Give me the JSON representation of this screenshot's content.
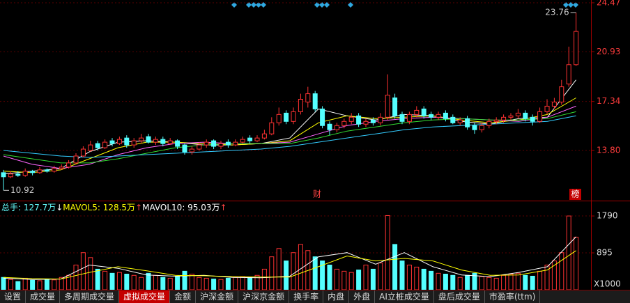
{
  "chart_data": [
    {
      "type": "candlestick",
      "open": [
        12.2,
        11.9,
        12.1,
        12.0,
        12.3,
        12.2,
        12.4,
        12.3,
        12.5,
        12.6,
        12.9,
        13.4,
        13.8,
        14.3,
        14.0,
        14.5,
        14.3,
        14.7,
        14.2,
        14.5,
        14.8,
        14.4,
        14.6,
        14.3,
        14.5,
        14.2,
        13.7,
        13.9,
        14.2,
        14.5,
        14.1,
        14.4,
        14.2,
        14.4,
        14.7,
        14.5,
        14.7,
        15.0,
        15.8,
        16.5,
        15.9,
        16.6,
        17.3,
        17.9,
        16.8,
        15.7,
        15.3,
        15.6,
        15.9,
        16.3,
        15.7,
        16.0,
        15.8,
        16.2,
        17.6,
        16.4,
        15.9,
        16.4,
        16.8,
        16.4,
        16.2,
        16.5,
        16.2,
        15.8,
        16.1,
        15.6,
        15.3,
        15.6,
        15.9,
        16.0,
        16.2,
        16.3,
        16.5,
        16.2,
        15.9,
        16.6,
        17.0,
        17.3,
        18.6,
        20.0
      ],
      "high": [
        12.4,
        12.3,
        12.3,
        12.5,
        12.4,
        12.6,
        12.5,
        12.7,
        12.8,
        13.1,
        13.6,
        14.1,
        14.5,
        14.5,
        14.6,
        14.7,
        14.8,
        14.9,
        14.7,
        15.0,
        15.0,
        14.8,
        14.8,
        14.7,
        14.6,
        14.3,
        14.1,
        14.4,
        14.6,
        14.6,
        14.5,
        14.6,
        14.6,
        14.8,
        14.9,
        14.9,
        15.3,
        16.2,
        16.9,
        16.7,
        16.9,
        17.9,
        18.4,
        18.1,
        17.0,
        15.9,
        15.8,
        16.1,
        16.5,
        16.5,
        16.1,
        16.2,
        16.5,
        19.3,
        17.9,
        16.6,
        16.6,
        17.0,
        17.0,
        16.6,
        16.6,
        16.7,
        16.4,
        16.2,
        16.3,
        15.8,
        15.8,
        16.1,
        16.2,
        16.4,
        16.5,
        16.8,
        16.7,
        16.4,
        16.9,
        17.5,
        17.6,
        18.9,
        21.3,
        23.76
      ],
      "low": [
        10.92,
        11.8,
        11.9,
        11.9,
        12.0,
        12.1,
        12.2,
        12.2,
        12.4,
        12.5,
        12.8,
        13.3,
        13.7,
        13.8,
        13.9,
        14.1,
        14.2,
        14.0,
        14.0,
        14.3,
        14.3,
        14.2,
        14.1,
        14.2,
        13.9,
        13.5,
        13.5,
        13.8,
        14.0,
        13.9,
        13.9,
        14.0,
        14.1,
        14.3,
        14.3,
        14.4,
        14.6,
        14.9,
        15.6,
        15.7,
        15.7,
        16.4,
        16.9,
        16.6,
        15.4,
        14.9,
        15.1,
        15.4,
        15.7,
        15.5,
        15.5,
        15.6,
        15.6,
        16.0,
        16.1,
        15.7,
        15.7,
        16.2,
        16.1,
        16.0,
        16.0,
        15.9,
        15.7,
        15.6,
        15.3,
        15.0,
        15.1,
        15.4,
        15.7,
        15.8,
        16.0,
        16.1,
        15.9,
        15.6,
        15.8,
        16.4,
        16.8,
        17.1,
        18.4,
        19.9
      ],
      "close": [
        11.9,
        12.1,
        12.0,
        12.3,
        12.2,
        12.4,
        12.3,
        12.5,
        12.6,
        12.9,
        13.4,
        13.9,
        14.2,
        14.0,
        14.4,
        14.3,
        14.6,
        14.2,
        14.5,
        14.7,
        14.4,
        14.6,
        14.3,
        14.5,
        14.1,
        13.7,
        13.9,
        14.2,
        14.4,
        14.1,
        14.3,
        14.2,
        14.4,
        14.6,
        14.5,
        14.7,
        15.0,
        15.8,
        16.4,
        15.9,
        16.6,
        17.5,
        17.9,
        16.8,
        15.6,
        15.3,
        15.6,
        15.9,
        16.2,
        15.7,
        15.9,
        15.8,
        16.2,
        17.8,
        16.3,
        15.9,
        16.4,
        16.7,
        16.3,
        16.2,
        16.4,
        16.1,
        15.8,
        16.0,
        15.5,
        15.3,
        15.6,
        15.9,
        16.0,
        16.2,
        16.3,
        16.5,
        16.1,
        15.9,
        16.6,
        17.0,
        17.3,
        18.4,
        20.0,
        22.4
      ],
      "series": [
        {
          "color": "#ffffff",
          "values": [
            12.1,
            12.3,
            12.5,
            13.7,
            14.4,
            14.5,
            14.4,
            14.2,
            14.2,
            14.3,
            14.7,
            16.8,
            16.3,
            16.0,
            16.4,
            16.3,
            15.9,
            15.7,
            16.1,
            16.2,
            18.9
          ]
        },
        {
          "color": "#ffff00",
          "values": [
            12.3,
            12.2,
            12.4,
            13.2,
            14.0,
            14.4,
            14.4,
            14.3,
            14.2,
            14.3,
            14.5,
            15.8,
            16.3,
            16.1,
            16.2,
            16.3,
            16.0,
            15.8,
            16.0,
            16.4,
            17.6
          ]
        },
        {
          "color": "#ff66ff",
          "values": [
            13.4,
            12.8,
            12.5,
            12.8,
            13.5,
            14.0,
            14.3,
            14.4,
            14.3,
            14.3,
            14.4,
            15.0,
            15.6,
            15.9,
            16.1,
            16.2,
            16.1,
            16.0,
            15.9,
            16.2,
            17.0
          ]
        },
        {
          "color": "#33dd33",
          "values": [
            13.5,
            13.2,
            12.9,
            12.9,
            13.2,
            13.6,
            14.0,
            14.2,
            14.3,
            14.3,
            14.3,
            14.7,
            15.2,
            15.5,
            15.8,
            16.0,
            16.1,
            16.0,
            16.0,
            16.1,
            16.6
          ]
        },
        {
          "color": "#33ccff",
          "values": [
            13.8,
            13.6,
            13.4,
            13.3,
            13.4,
            13.5,
            13.6,
            13.7,
            13.8,
            13.9,
            14.1,
            14.4,
            14.7,
            15.0,
            15.3,
            15.5,
            15.6,
            15.7,
            15.8,
            15.9,
            16.3
          ]
        }
      ],
      "ylim": [
        10.33,
        24.67
      ],
      "yticks": [
        {
          "value": 13.8,
          "label": "13.80"
        },
        {
          "value": 17.34,
          "label": "17.34"
        },
        {
          "value": 20.93,
          "label": "20.93"
        },
        {
          "value": 24.47,
          "label": "24.47"
        }
      ],
      "high_label": "23.76",
      "low_label": "10.92",
      "flags": [
        "财",
        "榜"
      ]
    },
    {
      "type": "bar",
      "values": [
        300,
        250,
        200,
        280,
        230,
        220,
        260,
        240,
        300,
        350,
        600,
        900,
        780,
        500,
        450,
        400,
        420,
        380,
        350,
        300,
        400,
        350,
        300,
        280,
        320,
        450,
        380,
        300,
        280,
        260,
        250,
        280,
        300,
        320,
        300,
        350,
        500,
        800,
        1000,
        700,
        900,
        1100,
        950,
        800,
        700,
        600,
        500,
        450,
        420,
        480,
        600,
        500,
        650,
        1800,
        1100,
        700,
        600,
        550,
        500,
        450,
        400,
        380,
        350,
        300,
        350,
        400,
        320,
        300,
        280,
        350,
        380,
        400,
        350,
        330,
        450,
        600,
        700,
        900,
        1790,
        1277
      ],
      "series": [
        {
          "color": "#ffffff",
          "values": [
            280,
            250,
            260,
            600,
            520,
            360,
            330,
            350,
            300,
            290,
            330,
            800,
            900,
            620,
            900,
            560,
            360,
            320,
            420,
            560,
            1285
          ]
        },
        {
          "color": "#ffff00",
          "values": [
            300,
            270,
            260,
            420,
            560,
            460,
            350,
            340,
            320,
            310,
            310,
            560,
            820,
            700,
            760,
            700,
            480,
            350,
            360,
            480,
            950
          ]
        }
      ],
      "ylim": [
        0,
        1960
      ],
      "yticks": [
        1790,
        895
      ],
      "unit_label": "X1000",
      "legend_texts": [
        "总手: 127.7万",
        "↓",
        "MAVOL5: 128.5万",
        "↑",
        "MAVOL10: 95.03万",
        "↑"
      ],
      "legend_colors": [
        "#66ffff",
        "#ffffff",
        "#ffff00",
        "#ff4444",
        "#ffffff",
        "#ff4444"
      ]
    }
  ],
  "tabs": [
    "设置",
    "成交量",
    "多周期成交量",
    "虚拟成交量",
    "金额",
    "沪深金额",
    "沪深京金额",
    "换手率",
    "内盘",
    "外盘",
    "AI立桩成交量",
    "盘后成交量",
    "市盈率(ttm)"
  ],
  "active_tab": 3
}
